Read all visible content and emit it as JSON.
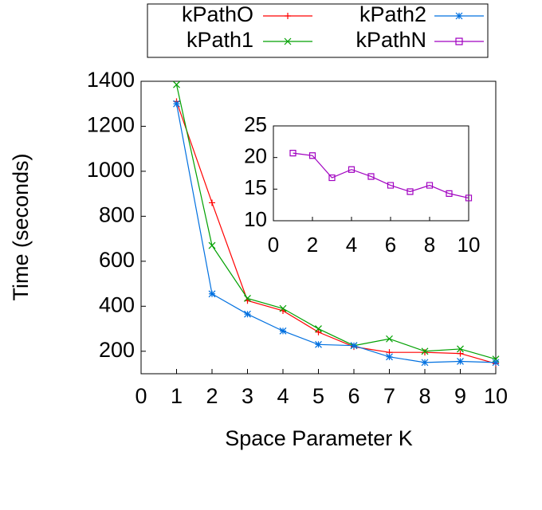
{
  "chart_data": [
    {
      "type": "line",
      "xlabel": "Space Parameter K",
      "ylabel": "Time (seconds)",
      "x": [
        1,
        2,
        3,
        4,
        5,
        6,
        7,
        8,
        9,
        10
      ],
      "series": [
        {
          "name": "kPathO",
          "color": "#ff0000",
          "marker": "plus",
          "values": [
            1310,
            860,
            425,
            380,
            285,
            220,
            195,
            195,
            190,
            145
          ]
        },
        {
          "name": "kPath1",
          "color": "#00a000",
          "marker": "cross",
          "values": [
            1385,
            670,
            435,
            390,
            300,
            225,
            255,
            200,
            210,
            165
          ]
        },
        {
          "name": "kPath2",
          "color": "#0070e0",
          "marker": "star",
          "values": [
            1300,
            455,
            365,
            290,
            230,
            225,
            175,
            150,
            155,
            150
          ]
        }
      ],
      "xlim": [
        0,
        10
      ],
      "xticks": [
        0,
        1,
        2,
        3,
        4,
        5,
        6,
        7,
        8,
        9,
        10
      ],
      "ylim": [
        100,
        1400
      ],
      "yticks": [
        200,
        400,
        600,
        800,
        1000,
        1200,
        1400
      ]
    },
    {
      "type": "line",
      "x": [
        1,
        2,
        3,
        4,
        5,
        6,
        7,
        8,
        9,
        10
      ],
      "series": [
        {
          "name": "kPathN",
          "color": "#a000c0",
          "marker": "square",
          "values": [
            20.7,
            20.3,
            16.8,
            18.1,
            17.0,
            15.6,
            14.6,
            15.6,
            14.3,
            13.6
          ]
        }
      ],
      "xlim": [
        0,
        10
      ],
      "xticks": [
        0,
        2,
        4,
        6,
        8,
        10
      ],
      "ylim": [
        10,
        25
      ],
      "yticks": [
        10,
        15,
        20,
        25
      ]
    }
  ]
}
